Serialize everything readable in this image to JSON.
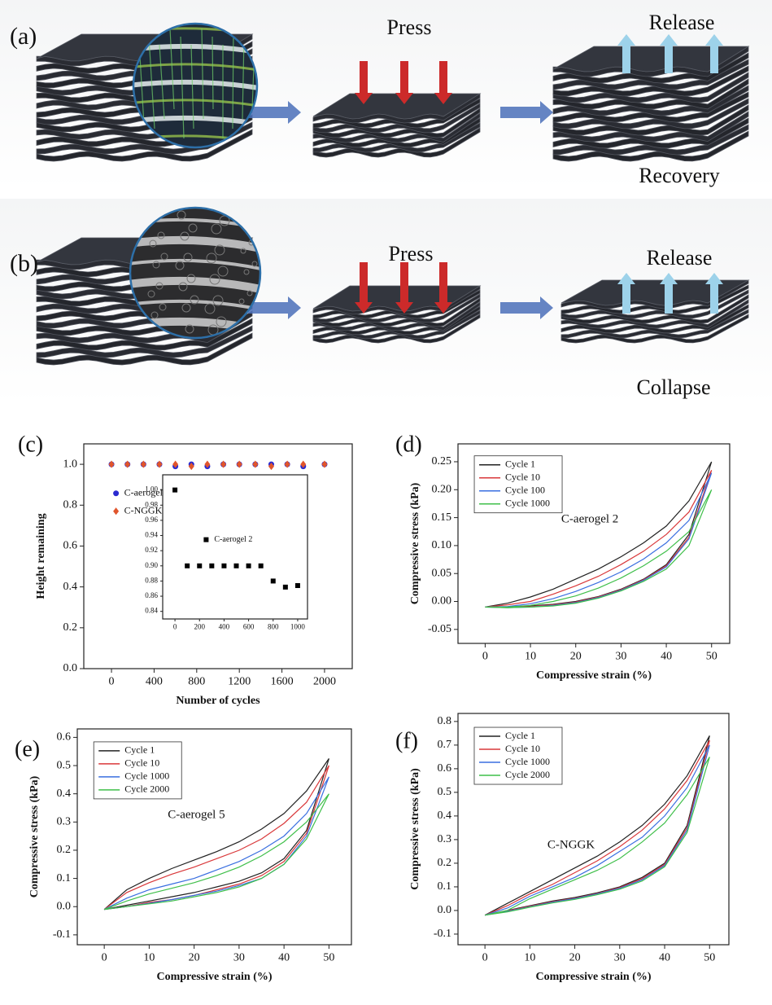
{
  "illustrations": [
    {
      "label": "(a)",
      "press": "Press",
      "release": "Release",
      "result": "Recovery"
    },
    {
      "label": "(b)",
      "press": "Press",
      "release": "Release",
      "result": "Collapse"
    }
  ],
  "chart_data": [
    {
      "type": "scatter",
      "panel_label": "(c)",
      "xlabel": "Number of cycles",
      "ylabel": "Height remaining",
      "x": [
        0,
        150,
        300,
        450,
        600,
        750,
        900,
        1050,
        1200,
        1350,
        1500,
        1650,
        1800,
        2000
      ],
      "series": [
        {
          "name": "C-aerogel 5",
          "color": "#2a2ad0",
          "marker": "circle",
          "values": [
            1,
            1,
            1,
            1,
            0.99,
            1,
            0.99,
            1,
            1,
            1,
            1,
            1,
            0.99,
            1
          ]
        },
        {
          "name": "C-NGGK",
          "color": "#e0552c",
          "marker": "diamond",
          "values": [
            1,
            1,
            1,
            1,
            1,
            0.99,
            1,
            1,
            1,
            1,
            0.99,
            1,
            1,
            1
          ]
        }
      ],
      "xlim": [
        -260,
        2260
      ],
      "ylim": [
        0,
        1.1
      ],
      "xticks": [
        0,
        400,
        800,
        1200,
        1600,
        2000
      ],
      "yticks": [
        {
          "value": 0,
          "label": "0.0"
        },
        0.2,
        0.4,
        0.6,
        0.8,
        {
          "value": 1,
          "label": "1.0"
        }
      ],
      "legend": "center left"
    },
    {
      "type": "scatter",
      "x": [
        0,
        100,
        200,
        300,
        400,
        500,
        600,
        700,
        800,
        900,
        1000
      ],
      "series": [
        {
          "name": "C-aerogel 2",
          "color": "#000000",
          "marker": "square",
          "values": [
            1,
            0.9,
            0.9,
            0.9,
            0.9,
            0.9,
            0.9,
            0.9,
            0.88,
            0.872,
            0.874
          ]
        }
      ],
      "xlim": [
        -100,
        1080
      ],
      "ylim": [
        0.83,
        1.02
      ],
      "xticks": [
        0,
        200,
        400,
        600,
        800,
        1000
      ],
      "yticks": [
        0.84,
        0.86,
        0.88,
        {
          "value": 0.9,
          "label": "0.90"
        },
        0.92,
        0.94,
        0.96,
        0.98,
        {
          "value": 1,
          "label": "1.00"
        }
      ],
      "legend": "center"
    },
    {
      "type": "line",
      "panel_label": "(d)",
      "xlabel": "Compressive strain (%)",
      "ylabel": "Compressive stress (kPa)",
      "annotation": "C-aerogel 2",
      "x": [
        0,
        5,
        10,
        15,
        20,
        25,
        30,
        35,
        40,
        45,
        50,
        45,
        40,
        35,
        30,
        25,
        20,
        15,
        10,
        5,
        0
      ],
      "series": [
        {
          "name": "Cycle 1",
          "color": "#222222",
          "values": [
            -0.01,
            -0.003,
            0.008,
            0.022,
            0.04,
            0.058,
            0.08,
            0.105,
            0.135,
            0.18,
            0.25,
            0.12,
            0.066,
            0.04,
            0.022,
            0.009,
            0,
            -0.005,
            -0.008,
            -0.01,
            -0.01
          ]
        },
        {
          "name": "Cycle 10",
          "color": "#d9383a",
          "values": [
            -0.01,
            -0.006,
            0,
            0.013,
            0.028,
            0.045,
            0.066,
            0.09,
            0.12,
            0.16,
            0.235,
            0.115,
            0.064,
            0.039,
            0.021,
            0.008,
            -0.001,
            -0.006,
            -0.009,
            -0.01,
            -0.01
          ]
        },
        {
          "name": "Cycle 100",
          "color": "#3a6fe0",
          "values": [
            -0.01,
            -0.009,
            -0.004,
            0.005,
            0.018,
            0.034,
            0.053,
            0.076,
            0.105,
            0.145,
            0.23,
            0.112,
            0.062,
            0.038,
            0.02,
            0.007,
            -0.002,
            -0.007,
            -0.01,
            -0.011,
            -0.01
          ]
        },
        {
          "name": "Cycle 1000",
          "color": "#3fbf4a",
          "values": [
            -0.01,
            -0.01,
            -0.007,
            0,
            0.01,
            0.024,
            0.042,
            0.064,
            0.09,
            0.125,
            0.2,
            0.1,
            0.058,
            0.036,
            0.019,
            0.006,
            -0.003,
            -0.008,
            -0.01,
            -0.011,
            -0.01
          ]
        }
      ],
      "xlim": [
        -6,
        54
      ],
      "ylim": [
        -0.075,
        0.282
      ],
      "xticks": [
        0,
        10,
        20,
        30,
        40,
        50
      ],
      "yticks": [
        -0.05,
        {
          "value": 0,
          "label": "0.00"
        },
        0.05,
        {
          "value": 0.1,
          "label": "0.10"
        },
        0.15,
        {
          "value": 0.2,
          "label": "0.20"
        },
        0.25
      ],
      "legend": "upper left"
    },
    {
      "type": "line",
      "panel_label": "(e)",
      "xlabel": "Compressive strain (%)",
      "ylabel": "Compressive stress (kPa)",
      "annotation": "C-aerogel 5",
      "x": [
        0,
        5,
        10,
        15,
        20,
        25,
        30,
        35,
        40,
        45,
        50,
        45,
        40,
        35,
        30,
        25,
        20,
        15,
        10,
        5,
        0
      ],
      "series": [
        {
          "name": "Cycle 1",
          "color": "#222222",
          "values": [
            -0.01,
            0.06,
            0.1,
            0.135,
            0.165,
            0.195,
            0.23,
            0.275,
            0.33,
            0.41,
            0.525,
            0.27,
            0.17,
            0.12,
            0.09,
            0.07,
            0.05,
            0.035,
            0.02,
            0.005,
            -0.01
          ]
        },
        {
          "name": "Cycle 10",
          "color": "#d9383a",
          "values": [
            -0.01,
            0.05,
            0.085,
            0.115,
            0.14,
            0.17,
            0.2,
            0.24,
            0.295,
            0.37,
            0.5,
            0.26,
            0.16,
            0.11,
            0.08,
            0.06,
            0.04,
            0.025,
            0.015,
            0,
            -0.01
          ]
        },
        {
          "name": "Cycle 1000",
          "color": "#3a6fe0",
          "values": [
            -0.01,
            0.03,
            0.06,
            0.08,
            0.1,
            0.13,
            0.16,
            0.2,
            0.25,
            0.33,
            0.46,
            0.25,
            0.15,
            0.1,
            0.075,
            0.055,
            0.04,
            0.025,
            0.012,
            0,
            -0.01
          ]
        },
        {
          "name": "Cycle 2000",
          "color": "#3fbf4a",
          "values": [
            -0.01,
            0.02,
            0.045,
            0.065,
            0.085,
            0.11,
            0.14,
            0.18,
            0.23,
            0.3,
            0.4,
            0.24,
            0.15,
            0.1,
            0.07,
            0.05,
            0.035,
            0.02,
            0.01,
            0,
            -0.01
          ]
        }
      ],
      "xlim": [
        -6,
        55
      ],
      "ylim": [
        -0.135,
        0.63
      ],
      "xticks": [
        0,
        10,
        20,
        30,
        40,
        50
      ],
      "yticks": [
        -0.1,
        {
          "value": 0,
          "label": "0.0"
        },
        0.1,
        0.2,
        0.3,
        0.4,
        0.5,
        0.6
      ],
      "legend": "upper left"
    },
    {
      "type": "line",
      "panel_label": "(f)",
      "xlabel": "Compressive strain (%)",
      "ylabel": "Compressive stress (kPa)",
      "annotation": "C-NGGK",
      "x": [
        0,
        5,
        10,
        15,
        20,
        25,
        30,
        35,
        40,
        45,
        50,
        45,
        40,
        35,
        30,
        25,
        20,
        15,
        10,
        5,
        0
      ],
      "series": [
        {
          "name": "Cycle 1",
          "color": "#222222",
          "values": [
            -0.02,
            0.03,
            0.08,
            0.13,
            0.18,
            0.23,
            0.29,
            0.36,
            0.45,
            0.57,
            0.74,
            0.36,
            0.2,
            0.14,
            0.1,
            0.075,
            0.055,
            0.04,
            0.02,
            0,
            -0.02
          ]
        },
        {
          "name": "Cycle 10",
          "color": "#d9383a",
          "values": [
            -0.02,
            0.02,
            0.07,
            0.11,
            0.16,
            0.21,
            0.27,
            0.34,
            0.43,
            0.55,
            0.72,
            0.35,
            0.195,
            0.135,
            0.097,
            0.072,
            0.052,
            0.037,
            0.018,
            -0.002,
            -0.02
          ]
        },
        {
          "name": "Cycle 1000",
          "color": "#3a6fe0",
          "values": [
            -0.02,
            0.01,
            0.06,
            0.1,
            0.14,
            0.19,
            0.25,
            0.31,
            0.4,
            0.52,
            0.7,
            0.34,
            0.19,
            0.13,
            0.094,
            0.07,
            0.05,
            0.035,
            0.016,
            -0.004,
            -0.02
          ]
        },
        {
          "name": "Cycle 2000",
          "color": "#3fbf4a",
          "values": [
            -0.02,
            0,
            0.05,
            0.09,
            0.13,
            0.17,
            0.22,
            0.29,
            0.37,
            0.49,
            0.65,
            0.33,
            0.185,
            0.125,
            0.09,
            0.067,
            0.047,
            0.032,
            0.014,
            -0.006,
            -0.02
          ]
        }
      ],
      "xlim": [
        -6,
        54.3
      ],
      "ylim": [
        -0.145,
        0.834
      ],
      "xticks": [
        0,
        10,
        20,
        30,
        40,
        50
      ],
      "yticks": [
        -0.1,
        {
          "value": 0,
          "label": "0.0"
        },
        0.1,
        0.2,
        0.3,
        0.4,
        0.5,
        0.6,
        0.7,
        0.8
      ],
      "legend": "upper left"
    }
  ]
}
